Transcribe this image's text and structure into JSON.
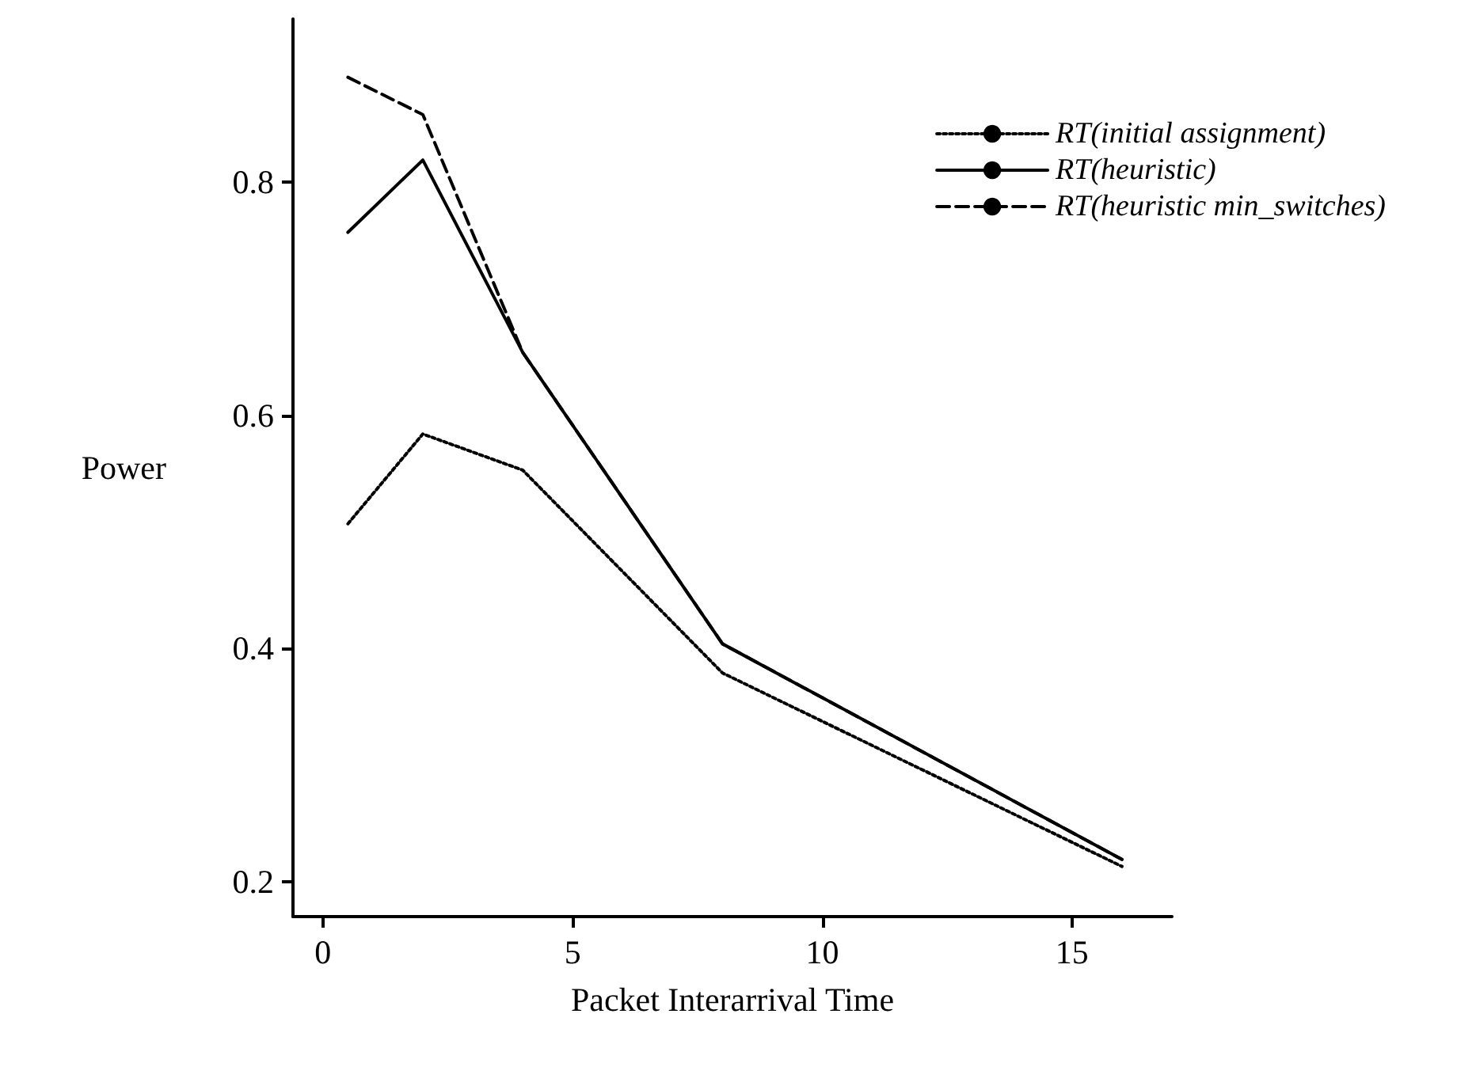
{
  "chart_data": {
    "type": "line",
    "xlabel": "Packet Interarrival Time",
    "ylabel": "Power",
    "x": [
      0.5,
      2,
      4,
      8,
      16
    ],
    "series": [
      {
        "name": "RT(initial assignment)",
        "color": "#000000",
        "line_style": "dotted",
        "values": [
          0.507,
          0.584,
          0.553,
          0.379,
          0.213
        ]
      },
      {
        "name": "RT(heuristic)",
        "color": "#000000",
        "line_style": "solid",
        "values": [
          0.757,
          0.819,
          0.654,
          0.404,
          0.219
        ]
      },
      {
        "name": "RT(heuristic min_switches)",
        "color": "#000000",
        "line_style": "dashed",
        "values": [
          0.89,
          0.858,
          0.654,
          0.404,
          0.219
        ]
      }
    ],
    "xlim": [
      -0.6,
      17
    ],
    "ylim": [
      0.17,
      0.94
    ],
    "xticks": [
      0,
      5,
      10,
      15
    ],
    "yticks": [
      0.2,
      0.4,
      0.6,
      0.8
    ],
    "grid": false,
    "legend": "top right",
    "marker": "none"
  }
}
